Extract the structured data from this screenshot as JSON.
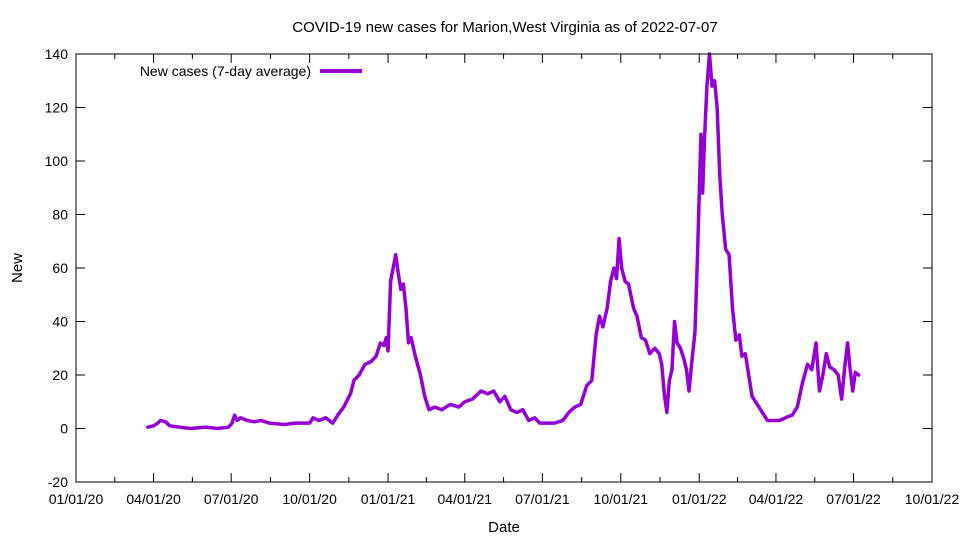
{
  "chart_data": {
    "type": "line",
    "title": "COVID-19 new cases for Marion,West Virginia as of 2022-07-07",
    "xlabel": "Date",
    "ylabel": "New",
    "ylim": [
      -20,
      140
    ],
    "yticks": [
      -20,
      0,
      20,
      40,
      60,
      80,
      100,
      120,
      140
    ],
    "xlim": [
      "2020-01-01",
      "2022-10-01"
    ],
    "xticks": [
      {
        "date": "2020-01-01",
        "label": "01/01/20"
      },
      {
        "date": "2020-04-01",
        "label": "04/01/20"
      },
      {
        "date": "2020-07-01",
        "label": "07/01/20"
      },
      {
        "date": "2020-10-01",
        "label": "10/01/20"
      },
      {
        "date": "2021-01-01",
        "label": "01/01/21"
      },
      {
        "date": "2021-04-01",
        "label": "04/01/21"
      },
      {
        "date": "2021-07-01",
        "label": "07/01/21"
      },
      {
        "date": "2021-10-01",
        "label": "10/01/21"
      },
      {
        "date": "2022-01-01",
        "label": "01/01/22"
      },
      {
        "date": "2022-04-01",
        "label": "04/01/22"
      },
      {
        "date": "2022-07-01",
        "label": "07/01/22"
      },
      {
        "date": "2022-10-01",
        "label": "10/01/22"
      }
    ],
    "grid": false,
    "legend_position": "top-left",
    "series": [
      {
        "name": "New cases (7-day average)",
        "color": "#9400d3",
        "points": [
          [
            "2020-03-25",
            0.5
          ],
          [
            "2020-04-01",
            1
          ],
          [
            "2020-04-06",
            2
          ],
          [
            "2020-04-09",
            3
          ],
          [
            "2020-04-15",
            2.5
          ],
          [
            "2020-04-20",
            1
          ],
          [
            "2020-05-01",
            0.5
          ],
          [
            "2020-05-15",
            0
          ],
          [
            "2020-06-01",
            0.5
          ],
          [
            "2020-06-15",
            0
          ],
          [
            "2020-06-28",
            0.5
          ],
          [
            "2020-07-02",
            2
          ],
          [
            "2020-07-05",
            5
          ],
          [
            "2020-07-08",
            3
          ],
          [
            "2020-07-12",
            4
          ],
          [
            "2020-07-20",
            3
          ],
          [
            "2020-07-28",
            2.5
          ],
          [
            "2020-08-05",
            3
          ],
          [
            "2020-08-15",
            2
          ],
          [
            "2020-09-01",
            1.5
          ],
          [
            "2020-09-15",
            2
          ],
          [
            "2020-10-01",
            2
          ],
          [
            "2020-10-05",
            4
          ],
          [
            "2020-10-12",
            3
          ],
          [
            "2020-10-20",
            4
          ],
          [
            "2020-10-28",
            2
          ],
          [
            "2020-11-03",
            5
          ],
          [
            "2020-11-10",
            8
          ],
          [
            "2020-11-18",
            13
          ],
          [
            "2020-11-22",
            18
          ],
          [
            "2020-11-28",
            20
          ],
          [
            "2020-12-05",
            24
          ],
          [
            "2020-12-12",
            25
          ],
          [
            "2020-12-18",
            27
          ],
          [
            "2020-12-23",
            32
          ],
          [
            "2020-12-27",
            31
          ],
          [
            "2020-12-30",
            34
          ],
          [
            "2021-01-01",
            29
          ],
          [
            "2021-01-04",
            55
          ],
          [
            "2021-01-07",
            60
          ],
          [
            "2021-01-10",
            65
          ],
          [
            "2021-01-13",
            58
          ],
          [
            "2021-01-16",
            52
          ],
          [
            "2021-01-19",
            54
          ],
          [
            "2021-01-22",
            45
          ],
          [
            "2021-01-25",
            32
          ],
          [
            "2021-01-28",
            34
          ],
          [
            "2021-02-02",
            27
          ],
          [
            "2021-02-08",
            20
          ],
          [
            "2021-02-13",
            12
          ],
          [
            "2021-02-18",
            7
          ],
          [
            "2021-02-25",
            8
          ],
          [
            "2021-03-05",
            7
          ],
          [
            "2021-03-15",
            9
          ],
          [
            "2021-03-25",
            8
          ],
          [
            "2021-04-01",
            10
          ],
          [
            "2021-04-10",
            11
          ],
          [
            "2021-04-20",
            14
          ],
          [
            "2021-04-28",
            13
          ],
          [
            "2021-05-05",
            14
          ],
          [
            "2021-05-12",
            10
          ],
          [
            "2021-05-18",
            12
          ],
          [
            "2021-05-25",
            7
          ],
          [
            "2021-06-01",
            6
          ],
          [
            "2021-06-08",
            7
          ],
          [
            "2021-06-15",
            3
          ],
          [
            "2021-06-22",
            4
          ],
          [
            "2021-06-28",
            2
          ],
          [
            "2021-07-05",
            2
          ],
          [
            "2021-07-15",
            2
          ],
          [
            "2021-07-25",
            3
          ],
          [
            "2021-08-01",
            6
          ],
          [
            "2021-08-08",
            8
          ],
          [
            "2021-08-15",
            9
          ],
          [
            "2021-08-22",
            16
          ],
          [
            "2021-08-28",
            18
          ],
          [
            "2021-09-02",
            35
          ],
          [
            "2021-09-06",
            42
          ],
          [
            "2021-09-10",
            38
          ],
          [
            "2021-09-15",
            45
          ],
          [
            "2021-09-19",
            55
          ],
          [
            "2021-09-23",
            60
          ],
          [
            "2021-09-26",
            56
          ],
          [
            "2021-09-29",
            71
          ],
          [
            "2021-10-02",
            60
          ],
          [
            "2021-10-06",
            55
          ],
          [
            "2021-10-10",
            54
          ],
          [
            "2021-10-16",
            45
          ],
          [
            "2021-10-20",
            42
          ],
          [
            "2021-10-25",
            34
          ],
          [
            "2021-10-30",
            33
          ],
          [
            "2021-11-04",
            28
          ],
          [
            "2021-11-10",
            30
          ],
          [
            "2021-11-15",
            28
          ],
          [
            "2021-11-18",
            24
          ],
          [
            "2021-11-21",
            13
          ],
          [
            "2021-11-24",
            6
          ],
          [
            "2021-11-27",
            18
          ],
          [
            "2021-11-30",
            22
          ],
          [
            "2021-12-03",
            40
          ],
          [
            "2021-12-06",
            32
          ],
          [
            "2021-12-10",
            30
          ],
          [
            "2021-12-14",
            26
          ],
          [
            "2021-12-17",
            22
          ],
          [
            "2021-12-20",
            14
          ],
          [
            "2021-12-23",
            24
          ],
          [
            "2021-12-27",
            36
          ],
          [
            "2021-12-30",
            65
          ],
          [
            "2022-01-03",
            110
          ],
          [
            "2022-01-05",
            88
          ],
          [
            "2022-01-07",
            107
          ],
          [
            "2022-01-10",
            128
          ],
          [
            "2022-01-13",
            140
          ],
          [
            "2022-01-16",
            128
          ],
          [
            "2022-01-19",
            130
          ],
          [
            "2022-01-22",
            120
          ],
          [
            "2022-01-25",
            95
          ],
          [
            "2022-01-28",
            80
          ],
          [
            "2022-02-01",
            67
          ],
          [
            "2022-02-05",
            65
          ],
          [
            "2022-02-09",
            45
          ],
          [
            "2022-02-13",
            33
          ],
          [
            "2022-02-17",
            35
          ],
          [
            "2022-02-20",
            27
          ],
          [
            "2022-02-24",
            28
          ],
          [
            "2022-02-28",
            20
          ],
          [
            "2022-03-04",
            12
          ],
          [
            "2022-03-10",
            9
          ],
          [
            "2022-03-16",
            6
          ],
          [
            "2022-03-22",
            3
          ],
          [
            "2022-03-28",
            3
          ],
          [
            "2022-04-05",
            3
          ],
          [
            "2022-04-12",
            4
          ],
          [
            "2022-04-20",
            5
          ],
          [
            "2022-04-26",
            8
          ],
          [
            "2022-05-02",
            17
          ],
          [
            "2022-05-08",
            24
          ],
          [
            "2022-05-13",
            22
          ],
          [
            "2022-05-18",
            32
          ],
          [
            "2022-05-22",
            14
          ],
          [
            "2022-05-26",
            20
          ],
          [
            "2022-05-30",
            28
          ],
          [
            "2022-06-03",
            23
          ],
          [
            "2022-06-08",
            22
          ],
          [
            "2022-06-13",
            20
          ],
          [
            "2022-06-17",
            11
          ],
          [
            "2022-06-21",
            24
          ],
          [
            "2022-06-24",
            32
          ],
          [
            "2022-06-27",
            22
          ],
          [
            "2022-06-30",
            14
          ],
          [
            "2022-07-03",
            21
          ],
          [
            "2022-07-07",
            20
          ]
        ]
      }
    ]
  }
}
